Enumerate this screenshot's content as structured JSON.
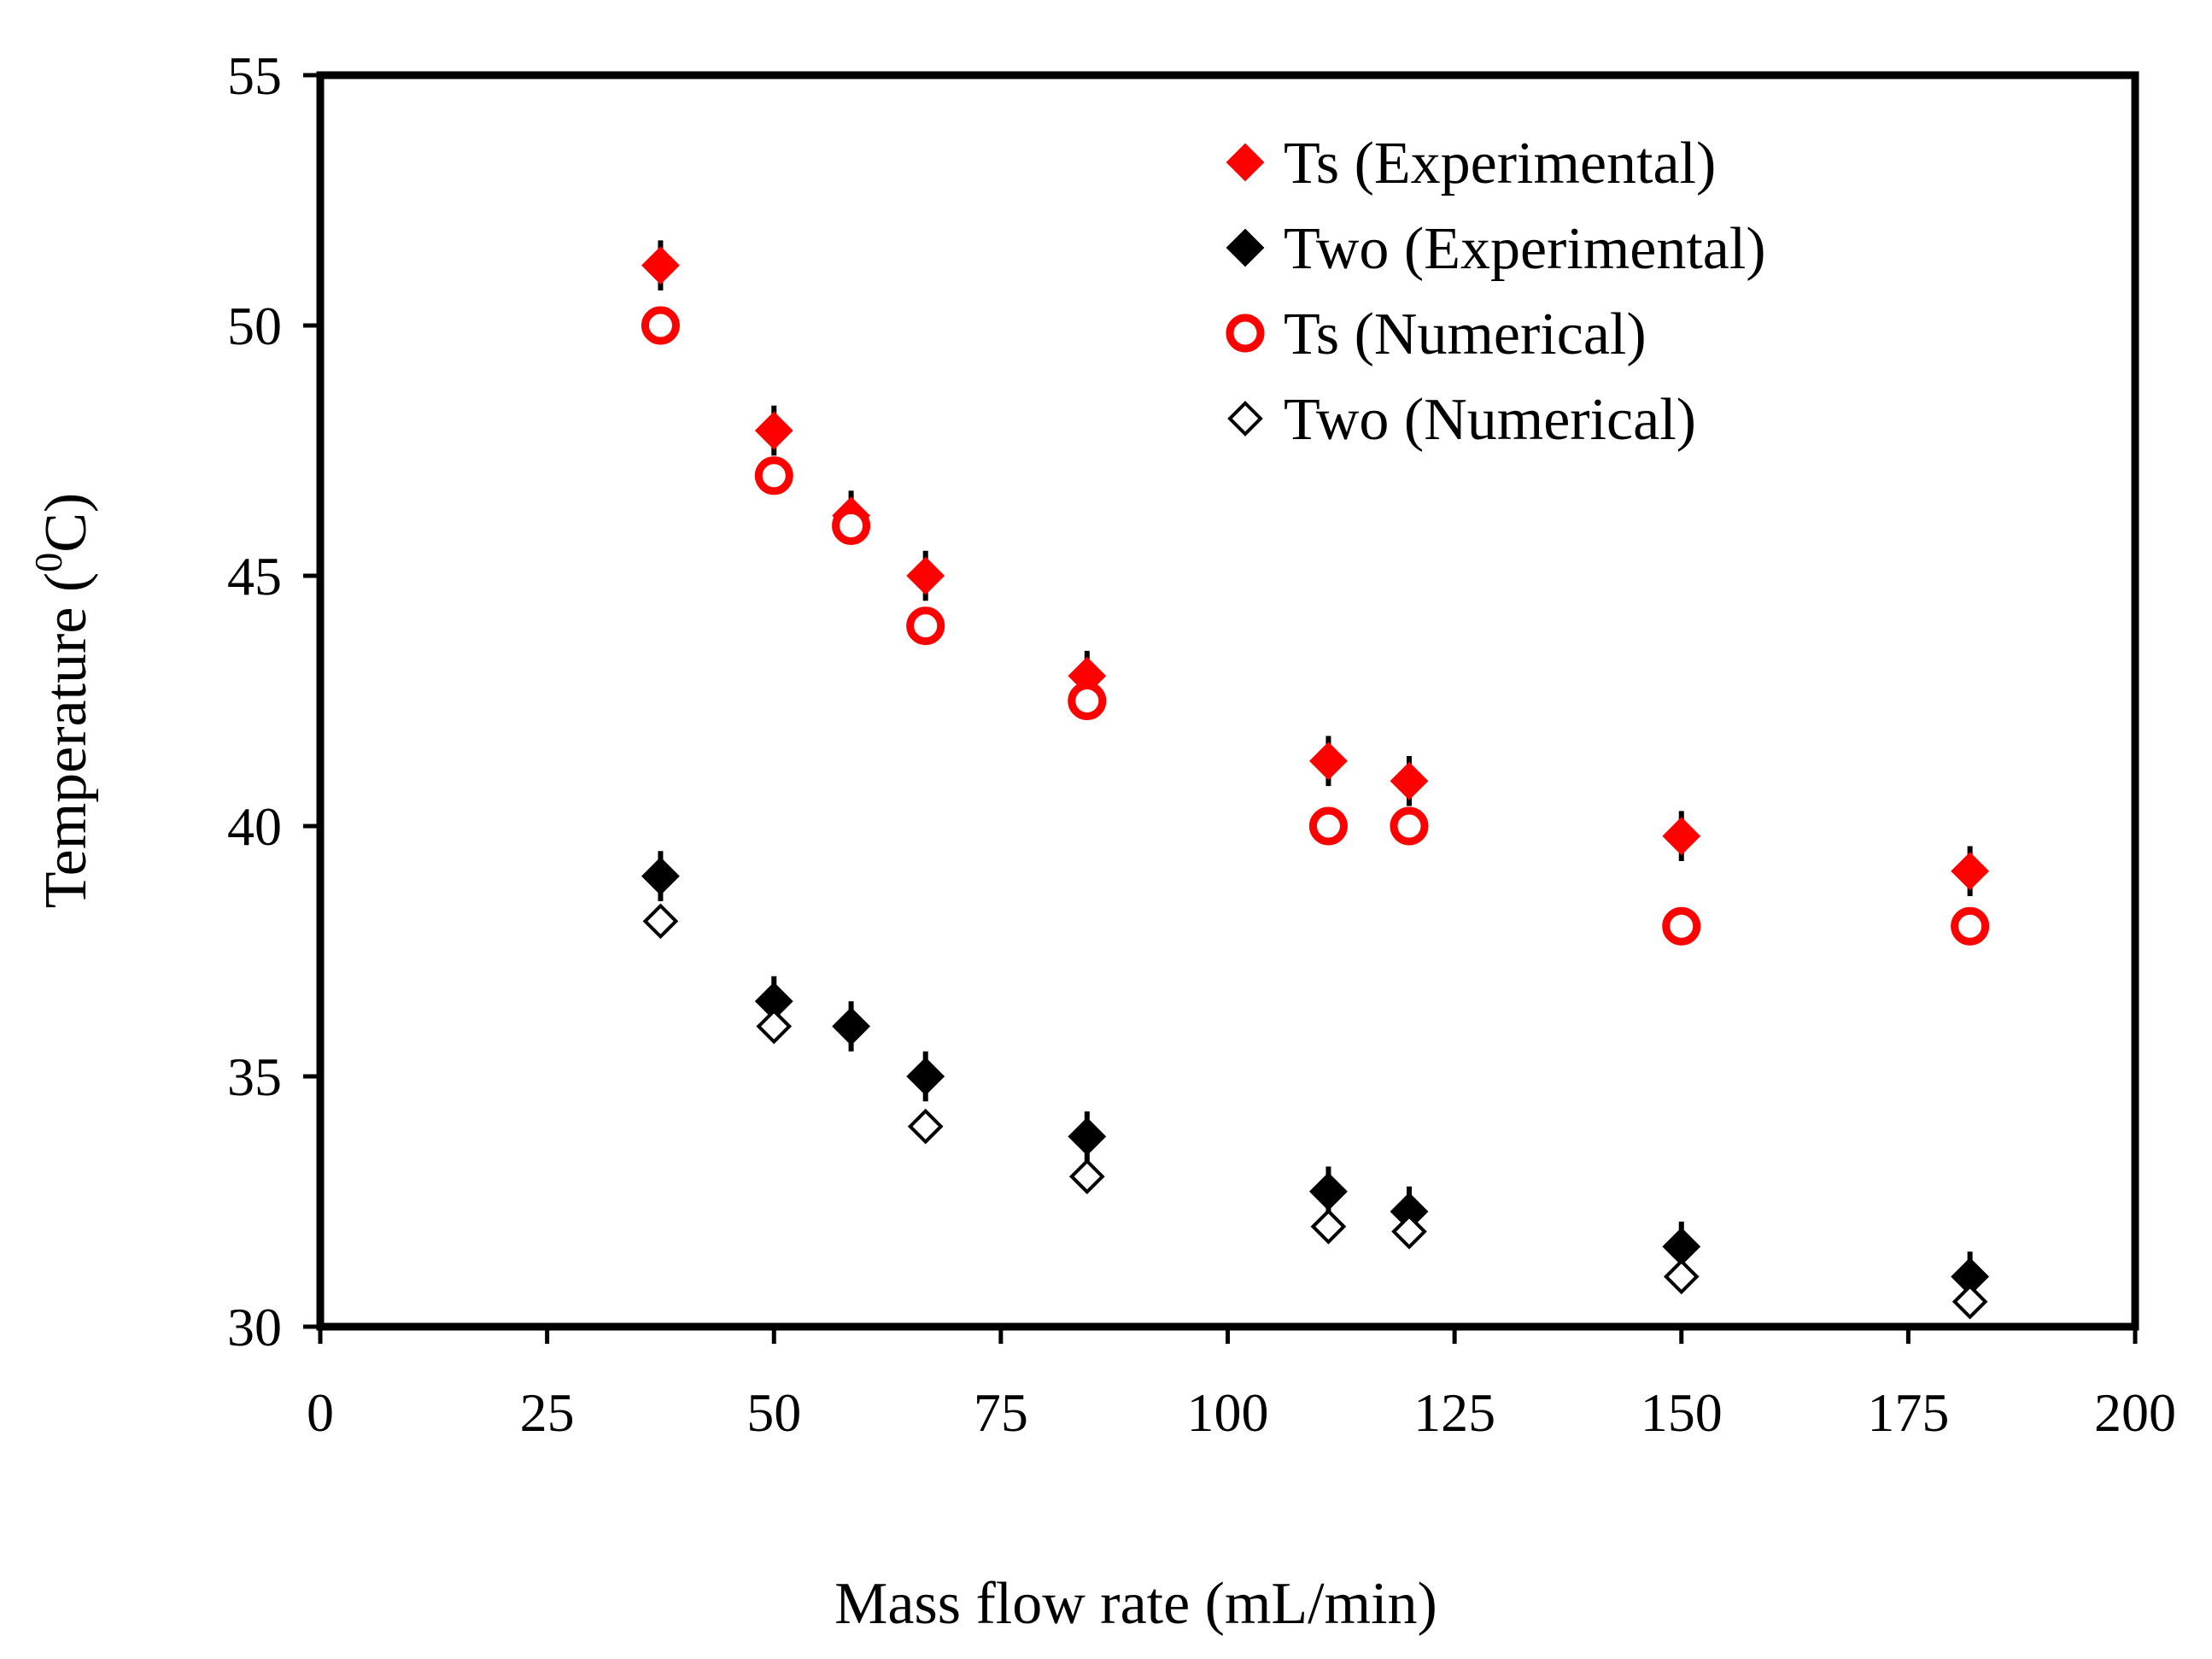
{
  "chart_data": {
    "type": "scatter",
    "title": "",
    "xlabel": "Mass flow rate (mL/min)",
    "ylabel_main": "Temperature (",
    "ylabel_sup": "0",
    "ylabel_end": "C)",
    "xlim": [
      0,
      200
    ],
    "ylim": [
      30,
      55
    ],
    "xticks": [
      0,
      25,
      50,
      75,
      100,
      125,
      150,
      175,
      200
    ],
    "yticks": [
      30,
      35,
      40,
      45,
      50,
      55
    ],
    "grid": false,
    "legend_position": "top-right",
    "series": [
      {
        "name": "Ts (Experimental)",
        "marker": "diamond-filled",
        "color": "#ff0000",
        "error": 0.5,
        "x": [
          37.5,
          50,
          58.5,
          66.7,
          84.5,
          111.1,
          120,
          150,
          181.8
        ],
        "y": [
          51.2,
          47.9,
          46.2,
          45.0,
          43.0,
          41.3,
          40.9,
          39.8,
          39.1
        ]
      },
      {
        "name": "Two (Experimental)",
        "marker": "diamond-filled",
        "color": "#000000",
        "error": 0.5,
        "x": [
          37.5,
          50,
          58.5,
          66.7,
          84.5,
          111.1,
          120,
          150,
          181.8
        ],
        "y": [
          39.0,
          36.5,
          36.0,
          35.0,
          33.8,
          32.7,
          32.3,
          31.6,
          31.0
        ]
      },
      {
        "name": "Ts (Numerical)",
        "marker": "circle-open",
        "color": "#ff0000",
        "x": [
          37.5,
          50,
          58.5,
          66.7,
          84.5,
          111.1,
          120,
          150,
          181.8
        ],
        "y": [
          50.0,
          47.0,
          46.0,
          44.0,
          42.5,
          40.0,
          40.0,
          38.0,
          38.0
        ]
      },
      {
        "name": "Two (Numerical)",
        "marker": "diamond-open",
        "color": "#000000",
        "x": [
          37.5,
          50,
          66.7,
          84.5,
          111.1,
          120,
          150,
          181.8
        ],
        "y": [
          38.1,
          36.0,
          34.0,
          33.0,
          32.0,
          31.9,
          31.0,
          30.5
        ]
      }
    ]
  }
}
